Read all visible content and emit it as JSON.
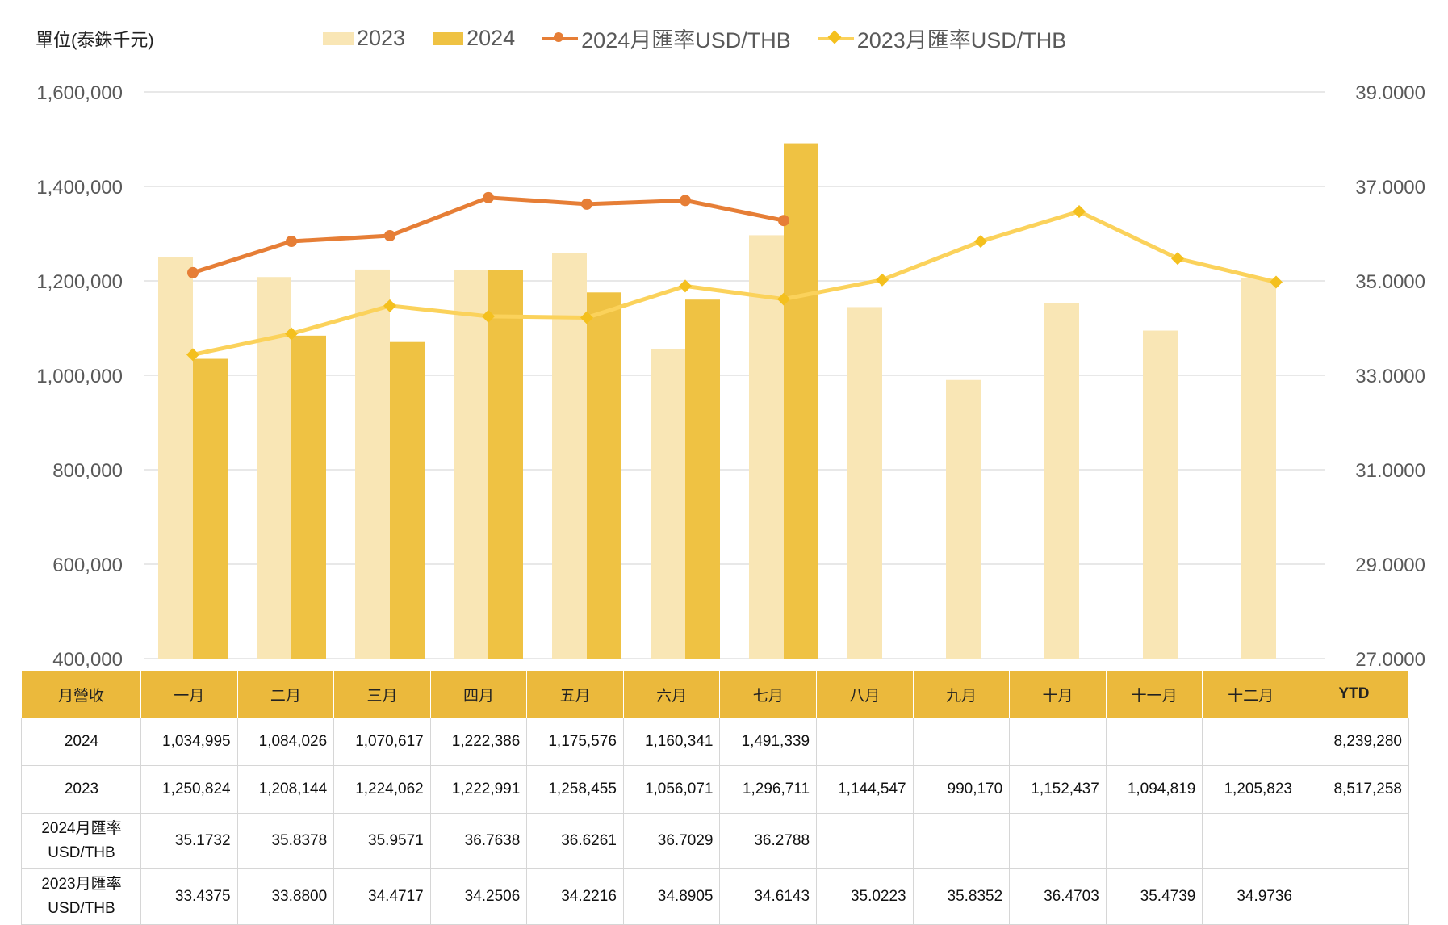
{
  "unit_label": "單位(泰銖千元)",
  "legend": [
    {
      "label": "2023",
      "kind": "bar",
      "color": "#F9E6B5"
    },
    {
      "label": "2024",
      "kind": "bar",
      "color": "#EFC243"
    },
    {
      "label": "2024月匯率USD/THB",
      "kind": "line",
      "color": "#E67E36"
    },
    {
      "label": "2023月匯率USD/THB",
      "kind": "line",
      "color": "#FBD25B"
    }
  ],
  "chart_data": {
    "type": "bar",
    "categories": [
      "一月",
      "二月",
      "三月",
      "四月",
      "五月",
      "六月",
      "七月",
      "八月",
      "九月",
      "十月",
      "十一月",
      "十二月"
    ],
    "series": [
      {
        "name": "2023",
        "type": "bar",
        "axis": "left",
        "color": "#F9E6B5",
        "values": [
          1250824,
          1208144,
          1224062,
          1222991,
          1258455,
          1056071,
          1296711,
          1144547,
          990170,
          1152437,
          1094819,
          1205823
        ]
      },
      {
        "name": "2024",
        "type": "bar",
        "axis": "left",
        "color": "#EFC243",
        "values": [
          1034995,
          1084026,
          1070617,
          1222386,
          1175576,
          1160341,
          1491339,
          null,
          null,
          null,
          null,
          null
        ]
      },
      {
        "name": "2024月匯率USD/THB",
        "type": "line",
        "axis": "right",
        "color": "#E67E36",
        "marker": "circle",
        "values": [
          35.1732,
          35.8378,
          35.9571,
          36.7638,
          36.6261,
          36.7029,
          36.2788,
          null,
          null,
          null,
          null,
          null
        ]
      },
      {
        "name": "2023月匯率USD/THB",
        "type": "line",
        "axis": "right",
        "color": "#FBD25B",
        "marker_color": "#F4C01E",
        "marker": "diamond",
        "values": [
          33.4375,
          33.88,
          34.4717,
          34.2506,
          34.2216,
          34.8905,
          34.6143,
          35.0223,
          35.8352,
          36.4703,
          35.4739,
          34.9736
        ]
      }
    ],
    "y_left": {
      "min": 400000,
      "max": 1600000,
      "ticks": [
        400000,
        600000,
        800000,
        1000000,
        1200000,
        1400000,
        1600000
      ],
      "tick_labels": [
        "400,000",
        "600,000",
        "800,000",
        "1,000,000",
        "1,200,000",
        "1,400,000",
        "1,600,000"
      ]
    },
    "y_right": {
      "min": 27,
      "max": 39,
      "ticks": [
        27,
        29,
        31,
        33,
        35,
        37,
        39
      ],
      "tick_labels": [
        "27.0000",
        "29.0000",
        "31.0000",
        "33.0000",
        "35.0000",
        "37.0000",
        "39.0000"
      ]
    },
    "grid": true,
    "legend_position": "top"
  },
  "table": {
    "headers": [
      "月營收",
      "一月",
      "二月",
      "三月",
      "四月",
      "五月",
      "六月",
      "七月",
      "八月",
      "九月",
      "十月",
      "十一月",
      "十二月",
      "YTD"
    ],
    "rows": [
      {
        "label": "2024",
        "cells": [
          "1,034,995",
          "1,084,026",
          "1,070,617",
          "1,222,386",
          "1,175,576",
          "1,160,341",
          "1,491,339",
          "",
          "",
          "",
          "",
          "",
          "8,239,280"
        ]
      },
      {
        "label": "2023",
        "cells": [
          "1,250,824",
          "1,208,144",
          "1,224,062",
          "1,222,991",
          "1,258,455",
          "1,056,071",
          "1,296,711",
          "1,144,547",
          "990,170",
          "1,152,437",
          "1,094,819",
          "1,205,823",
          "8,517,258"
        ]
      },
      {
        "label": "2024月匯率\nUSD/THB",
        "cells": [
          "35.1732",
          "35.8378",
          "35.9571",
          "36.7638",
          "36.6261",
          "36.7029",
          "36.2788",
          "",
          "",
          "",
          "",
          "",
          ""
        ]
      },
      {
        "label": "2023月匯率\nUSD/THB",
        "cells": [
          "33.4375",
          "33.8800",
          "34.4717",
          "34.2506",
          "34.2216",
          "34.8905",
          "34.6143",
          "35.0223",
          "35.8352",
          "36.4703",
          "35.4739",
          "34.9736",
          ""
        ]
      }
    ]
  }
}
